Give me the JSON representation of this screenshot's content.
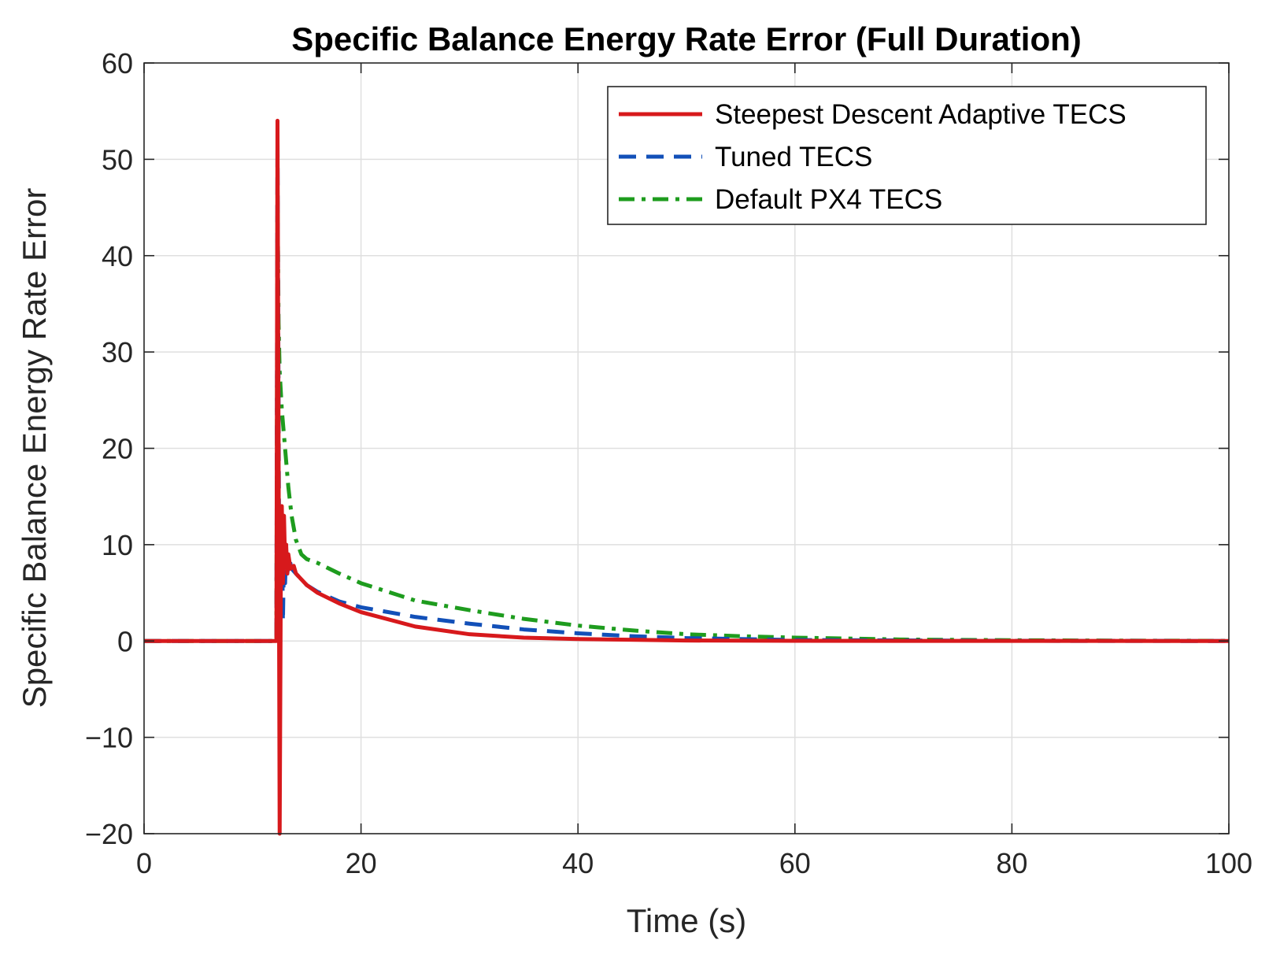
{
  "chart_data": {
    "type": "line",
    "title": "Specific Balance Energy Rate Error (Full Duration)",
    "xlabel": "Time (s)",
    "ylabel": "Specific Balance Energy Rate Error",
    "xlim": [
      0,
      100
    ],
    "ylim": [
      -20,
      60
    ],
    "xticks": [
      0,
      20,
      40,
      60,
      80,
      100
    ],
    "xtick_labels": [
      "0",
      "20",
      "40",
      "60",
      "80",
      "100"
    ],
    "yticks": [
      -20,
      -10,
      0,
      10,
      20,
      30,
      40,
      50,
      60
    ],
    "ytick_labels": [
      "−20",
      "−10",
      "0",
      "10",
      "20",
      "30",
      "40",
      "50",
      "60"
    ],
    "grid": true,
    "legend_position": "top-right",
    "series": [
      {
        "name": "Steepest Descent Adaptive TECS",
        "color": "#d7191c",
        "style": "solid",
        "points": [
          [
            0,
            0
          ],
          [
            12.2,
            0
          ],
          [
            12.3,
            54
          ],
          [
            12.4,
            20
          ],
          [
            12.5,
            -20
          ],
          [
            12.6,
            5
          ],
          [
            12.7,
            14
          ],
          [
            12.8,
            6
          ],
          [
            12.9,
            13
          ],
          [
            13.0,
            8
          ],
          [
            13.1,
            10
          ],
          [
            13.2,
            7
          ],
          [
            13.3,
            9
          ],
          [
            13.5,
            7.5
          ],
          [
            13.8,
            7.8
          ],
          [
            14,
            7.0
          ],
          [
            15,
            5.8
          ],
          [
            16,
            5.0
          ],
          [
            18,
            3.9
          ],
          [
            20,
            3.0
          ],
          [
            25,
            1.5
          ],
          [
            30,
            0.7
          ],
          [
            35,
            0.35
          ],
          [
            40,
            0.2
          ],
          [
            50,
            0.05
          ],
          [
            60,
            0.02
          ],
          [
            80,
            0.01
          ],
          [
            100,
            0
          ]
        ]
      },
      {
        "name": "Tuned TECS",
        "color": "#1250b8",
        "style": "dashed",
        "points": [
          [
            0,
            0
          ],
          [
            12.2,
            0
          ],
          [
            12.3,
            52
          ],
          [
            12.4,
            25
          ],
          [
            12.5,
            -6
          ],
          [
            12.6,
            10
          ],
          [
            12.7,
            13
          ],
          [
            12.8,
            2
          ],
          [
            12.9,
            9
          ],
          [
            13.0,
            6
          ],
          [
            13.1,
            9.5
          ],
          [
            13.2,
            7
          ],
          [
            13.4,
            8.5
          ],
          [
            13.6,
            7.5
          ],
          [
            14,
            7.0
          ],
          [
            15,
            5.8
          ],
          [
            16,
            5.1
          ],
          [
            18,
            4.1
          ],
          [
            20,
            3.5
          ],
          [
            25,
            2.5
          ],
          [
            30,
            1.8
          ],
          [
            35,
            1.2
          ],
          [
            40,
            0.8
          ],
          [
            45,
            0.5
          ],
          [
            50,
            0.3
          ],
          [
            60,
            0.1
          ],
          [
            80,
            0.02
          ],
          [
            100,
            0
          ]
        ]
      },
      {
        "name": "Default PX4 TECS",
        "color": "#1e9c1e",
        "style": "dashdot",
        "points": [
          [
            0,
            0
          ],
          [
            12.2,
            0
          ],
          [
            12.3,
            47
          ],
          [
            12.4,
            33
          ],
          [
            12.5,
            28
          ],
          [
            12.7,
            24
          ],
          [
            13.0,
            20
          ],
          [
            13.3,
            16
          ],
          [
            13.6,
            13
          ],
          [
            14.0,
            10.5
          ],
          [
            14.5,
            9.0
          ],
          [
            15.0,
            8.5
          ],
          [
            16,
            8.1
          ],
          [
            18,
            7.0
          ],
          [
            20,
            6.0
          ],
          [
            25,
            4.2
          ],
          [
            30,
            3.2
          ],
          [
            35,
            2.3
          ],
          [
            40,
            1.6
          ],
          [
            45,
            1.1
          ],
          [
            50,
            0.7
          ],
          [
            55,
            0.5
          ],
          [
            60,
            0.35
          ],
          [
            70,
            0.15
          ],
          [
            80,
            0.08
          ],
          [
            90,
            0.04
          ],
          [
            100,
            0.02
          ]
        ]
      }
    ]
  }
}
